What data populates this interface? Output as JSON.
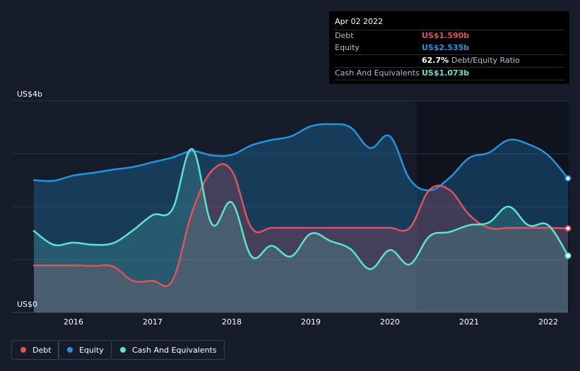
{
  "chart_data": {
    "type": "area",
    "x": [
      2015.5,
      2015.75,
      2016.0,
      2016.25,
      2016.5,
      2016.75,
      2017.0,
      2017.25,
      2017.5,
      2017.75,
      2018.0,
      2018.25,
      2018.5,
      2018.75,
      2019.0,
      2019.25,
      2019.5,
      2019.75,
      2020.0,
      2020.25,
      2020.5,
      2020.75,
      2021.0,
      2021.25,
      2021.5,
      2021.75,
      2022.0,
      2022.25
    ],
    "series": [
      {
        "name": "Debt",
        "color": "#e0525e",
        "values": [
          0.89,
          0.89,
          0.89,
          0.88,
          0.87,
          0.6,
          0.6,
          0.6,
          1.9,
          2.68,
          2.68,
          1.6,
          1.6,
          1.6,
          1.6,
          1.6,
          1.6,
          1.6,
          1.6,
          1.6,
          2.32,
          2.32,
          1.85,
          1.6,
          1.6,
          1.6,
          1.6,
          1.59
        ]
      },
      {
        "name": "Equity",
        "color": "#2394df",
        "values": [
          2.5,
          2.49,
          2.59,
          2.64,
          2.7,
          2.75,
          2.84,
          2.93,
          3.05,
          2.97,
          2.98,
          3.16,
          3.26,
          3.33,
          3.52,
          3.56,
          3.5,
          3.11,
          3.33,
          2.52,
          2.31,
          2.54,
          2.92,
          3.02,
          3.26,
          3.18,
          2.97,
          2.535
        ]
      },
      {
        "name": "Cash And Equivalents",
        "color": "#5de3d0",
        "values": [
          1.54,
          1.28,
          1.32,
          1.28,
          1.31,
          1.55,
          1.84,
          1.95,
          3.09,
          1.67,
          2.08,
          1.06,
          1.26,
          1.06,
          1.49,
          1.35,
          1.2,
          0.82,
          1.18,
          0.91,
          1.44,
          1.52,
          1.65,
          1.7,
          2.0,
          1.65,
          1.65,
          1.073
        ]
      }
    ],
    "ylim": [
      0,
      4
    ],
    "xlim": [
      2015.5,
      2022.25
    ],
    "xticks": [
      "2016",
      "2017",
      "2018",
      "2019",
      "2020",
      "2021",
      "2022"
    ],
    "xtick_values": [
      2016,
      2017,
      2018,
      2019,
      2020,
      2021,
      2022
    ],
    "y_top_label": "US$4b",
    "y_bottom_label": "US$0",
    "grid": true
  },
  "tooltip": {
    "date": "Apr 02 2022",
    "debt_label": "Debt",
    "debt_value": "US$1.590b",
    "equity_label": "Equity",
    "equity_value": "US$2.535b",
    "ratio_value": "62.7%",
    "ratio_label": "Debt/Equity Ratio",
    "cash_label": "Cash And Equivalents",
    "cash_value": "US$1.073b"
  },
  "legend": {
    "debt": "Debt",
    "equity": "Equity",
    "cash": "Cash And Equivalents"
  },
  "colors": {
    "background": "#151b28",
    "plot_past": "#0e1119",
    "debt": "#e0525e",
    "equity": "#2394df",
    "cash": "#5de3d0"
  }
}
